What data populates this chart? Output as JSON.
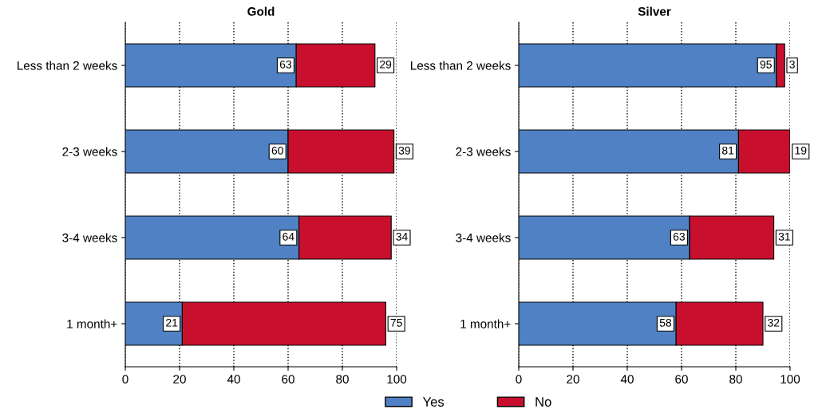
{
  "chart_data": [
    {
      "type": "bar",
      "title": "Gold",
      "orientation": "horizontal",
      "stacked": true,
      "categories": [
        "Less than 2 weeks",
        "2-3 weeks",
        "3-4 weeks",
        "1 month+"
      ],
      "series": [
        {
          "name": "Yes",
          "color": "#4f81c4",
          "values": [
            63,
            60,
            64,
            21
          ]
        },
        {
          "name": "No",
          "color": "#c8102e",
          "values": [
            29,
            39,
            34,
            75
          ]
        }
      ],
      "xlim": [
        0,
        100
      ],
      "xticks": [
        0,
        20,
        40,
        60,
        80,
        100
      ],
      "grid": "x",
      "data_labels": true,
      "legend": "bottom"
    },
    {
      "type": "bar",
      "title": "Silver",
      "orientation": "horizontal",
      "stacked": true,
      "categories": [
        "Less than 2 weeks",
        "2-3 weeks",
        "3-4 weeks",
        "1 month+"
      ],
      "series": [
        {
          "name": "Yes",
          "color": "#4f81c4",
          "values": [
            95,
            81,
            63,
            58
          ]
        },
        {
          "name": "No",
          "color": "#c8102e",
          "values": [
            3,
            19,
            31,
            32
          ]
        }
      ],
      "xlim": [
        0,
        100
      ],
      "xticks": [
        0,
        20,
        40,
        60,
        80,
        100
      ],
      "grid": "x",
      "data_labels": true,
      "legend": "bottom"
    }
  ]
}
